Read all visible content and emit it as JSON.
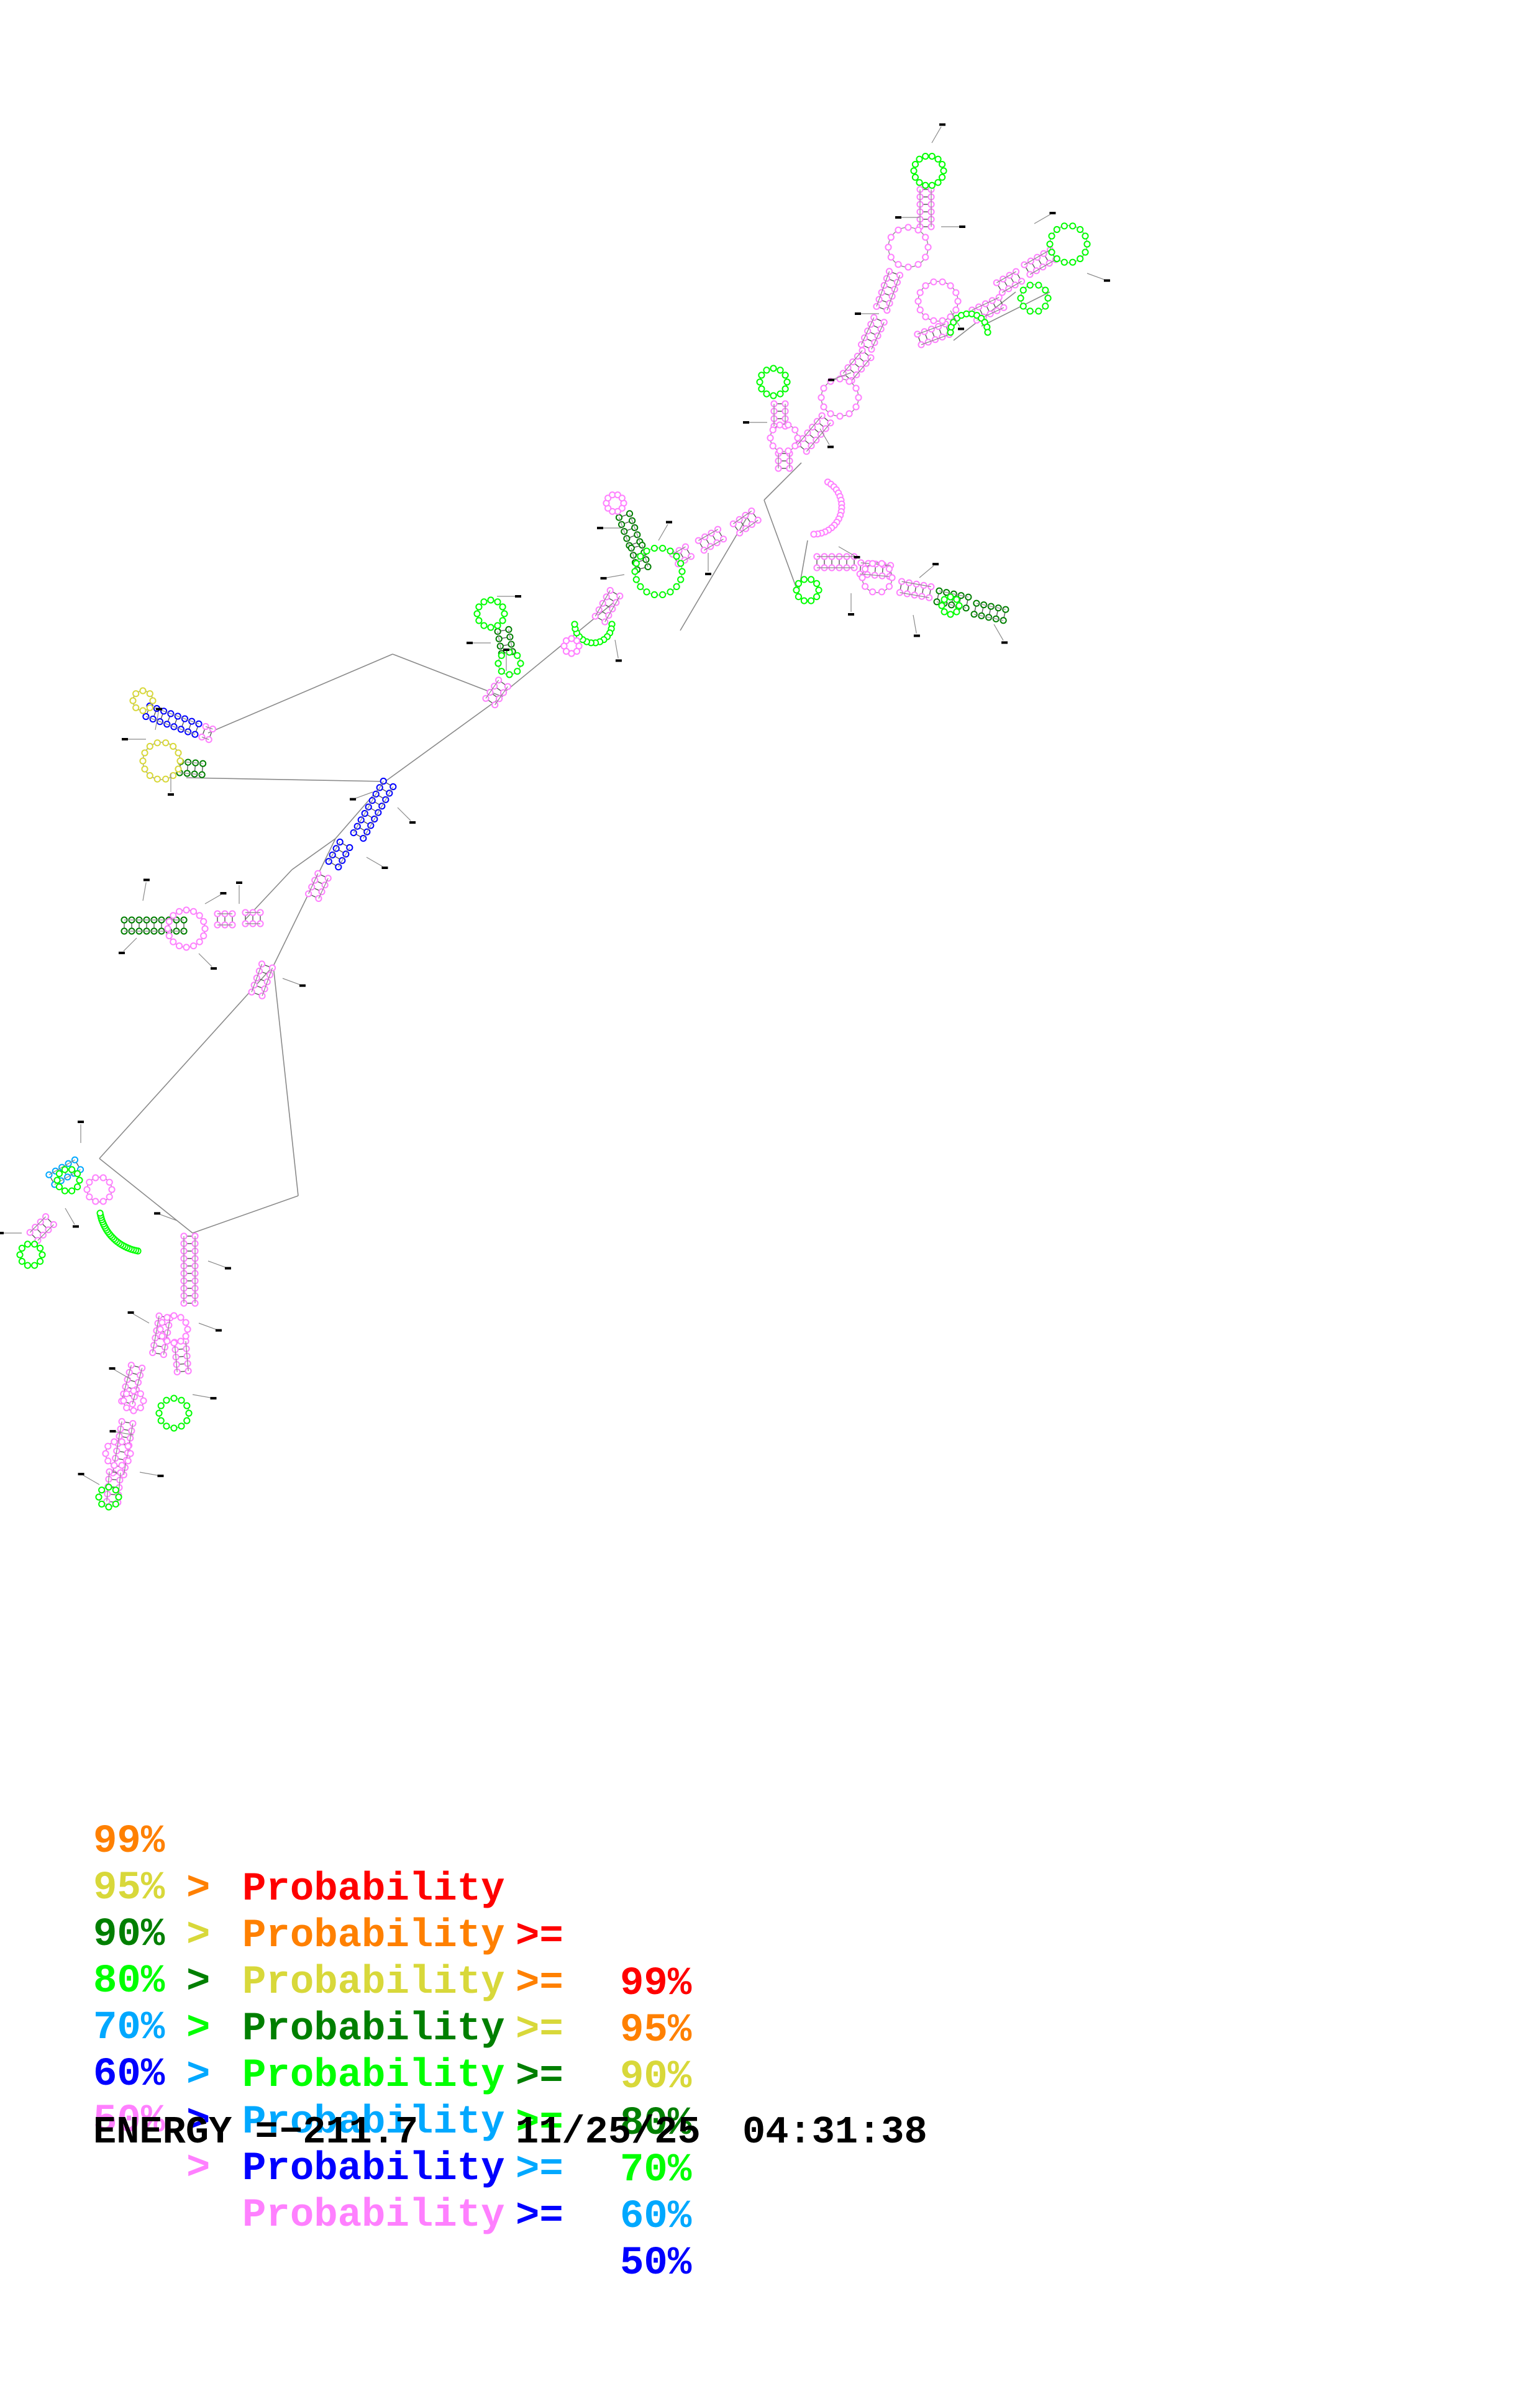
{
  "legend": {
    "rows": [
      {
        "left": "",
        "gt": "",
        "label": "Probability",
        "ge": ">=",
        "right": "99%",
        "color": "#ff0000"
      },
      {
        "left": "99%",
        "gt": ">",
        "label": "Probability",
        "ge": ">=",
        "right": "95%",
        "color": "#ff8000"
      },
      {
        "left": "95%",
        "gt": ">",
        "label": "Probability",
        "ge": ">=",
        "right": "90%",
        "color": "#d8d83a"
      },
      {
        "left": "90%",
        "gt": ">",
        "label": "Probability",
        "ge": ">=",
        "right": "80%",
        "color": "#007f00"
      },
      {
        "left": "80%",
        "gt": ">",
        "label": "Probability",
        "ge": ">=",
        "right": "70%",
        "color": "#00ff00"
      },
      {
        "left": "70%",
        "gt": ">",
        "label": "Probability",
        "ge": ">=",
        "right": "60%",
        "color": "#00a8ff"
      },
      {
        "left": "60%",
        "gt": ">",
        "label": "Probability",
        "ge": ">=",
        "right": "50%",
        "color": "#0000ff"
      },
      {
        "left": "50%",
        "gt": ">",
        "label": "Probability",
        "ge": "",
        "right": "",
        "color": "#ff80ff"
      }
    ]
  },
  "footer": {
    "energy_label": "ENERGY =",
    "energy_value": "−211.7",
    "date": "11/25/25",
    "time": "04:31:38"
  },
  "structure": {
    "nucleotide_color": "#ff80ff",
    "backbone_color": "#8a8a8a",
    "pair_color": "#5a5a5a"
  }
}
